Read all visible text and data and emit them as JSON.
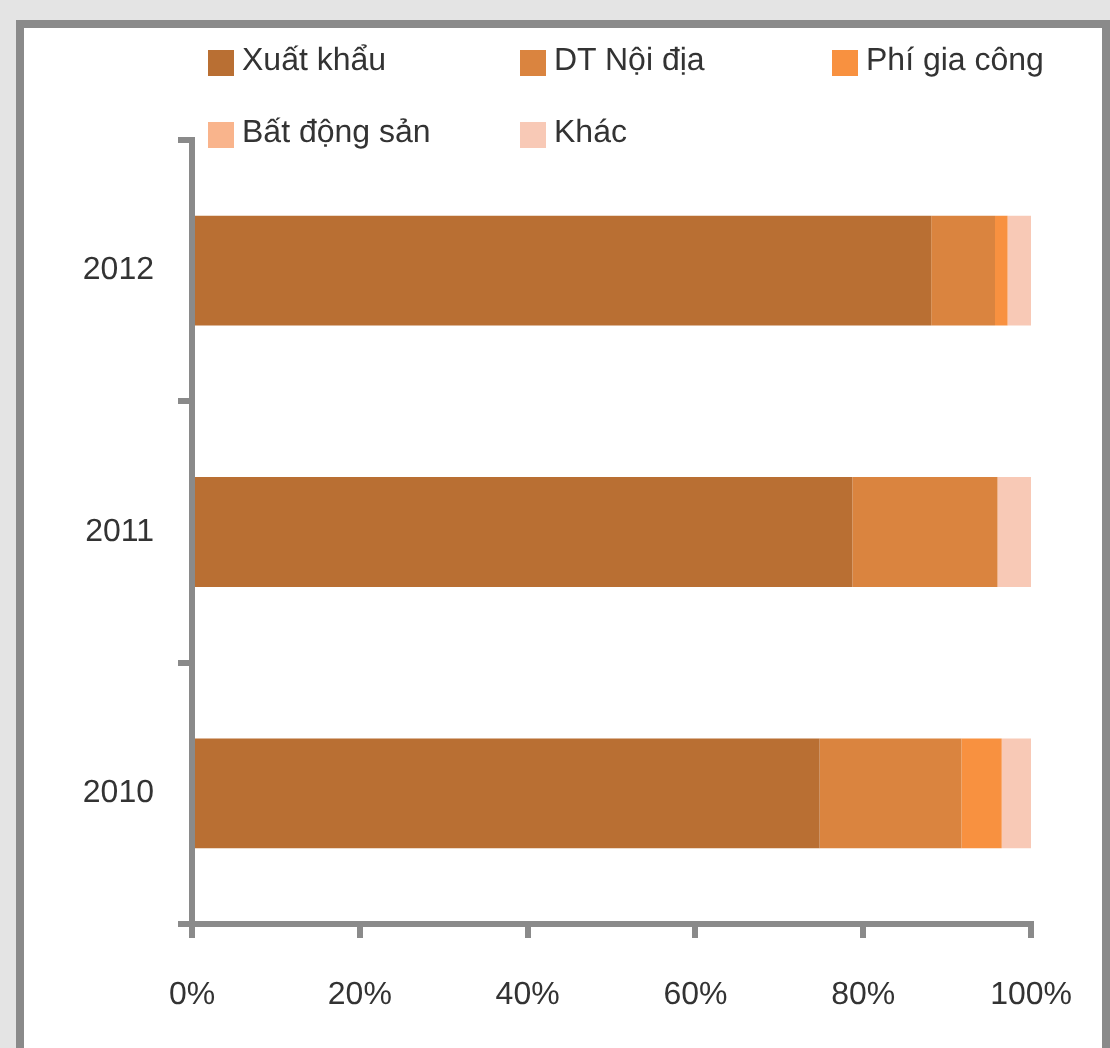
{
  "chart_data": {
    "type": "bar",
    "orientation": "horizontal",
    "stacked": true,
    "categories": [
      "2012",
      "2011",
      "2010"
    ],
    "series": [
      {
        "name": "Xuất khẩu",
        "color": "#b96f33",
        "values": [
          88.1,
          78.7,
          74.8
        ]
      },
      {
        "name": "DT Nội địa",
        "color": "#da843f",
        "values": [
          7.6,
          17.3,
          16.9
        ]
      },
      {
        "name": "Phí gia công",
        "color": "#f89140",
        "values": [
          1.5,
          0,
          4.8
        ]
      },
      {
        "name": "Bất động sản",
        "color": "#f9b48c",
        "values": [
          null,
          null,
          null
        ]
      },
      {
        "name": "Khác",
        "color": "#f8c9b6",
        "values": [
          2.8,
          4.0,
          3.5
        ]
      }
    ],
    "xlim": [
      0,
      100
    ],
    "xticks": [
      {
        "value": 0,
        "label": "0%"
      },
      {
        "value": 20,
        "label": "20%"
      },
      {
        "value": 40,
        "label": "40%"
      },
      {
        "value": 60,
        "label": "60%"
      },
      {
        "value": 80,
        "label": "80%"
      },
      {
        "value": 100,
        "label": "100%"
      }
    ],
    "legend": "top"
  }
}
